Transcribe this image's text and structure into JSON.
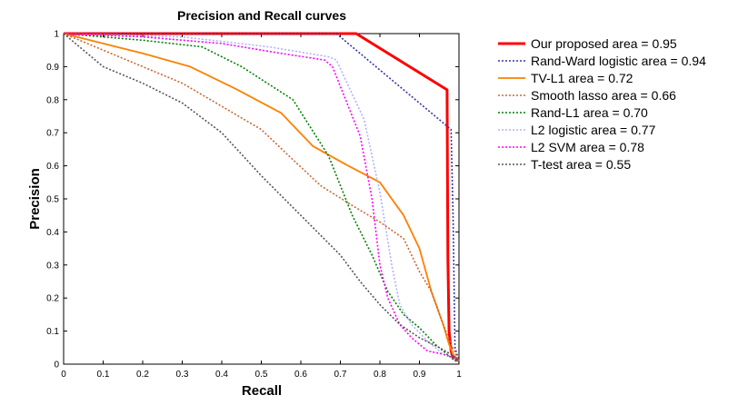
{
  "chart_data": {
    "type": "line",
    "title": "Precision and Recall curves",
    "xlabel": "Recall",
    "ylabel": "Precision",
    "xlim": [
      0,
      1
    ],
    "ylim": [
      0,
      1
    ],
    "xticks": [
      0,
      0.1,
      0.2,
      0.3,
      0.4,
      0.5,
      0.6,
      0.7,
      0.8,
      0.9,
      1
    ],
    "yticks": [
      0,
      0.1,
      0.2,
      0.3,
      0.4,
      0.5,
      0.6,
      0.7,
      0.8,
      0.9,
      1
    ],
    "xtick_labels": [
      "0",
      "0.1",
      "0.2",
      "0.3",
      "0.4",
      "0.5",
      "0.6",
      "0.7",
      "0.8",
      "0.9",
      "1"
    ],
    "ytick_labels": [
      "0",
      "0.1",
      "0.2",
      "0.3",
      "0.4",
      "0.5",
      "0.6",
      "0.7",
      "0.8",
      "0.9",
      "1"
    ],
    "grid": false,
    "legend_position": "outside-right",
    "series": [
      {
        "name": "Our proposed area = 0.95",
        "color": "#ff0000",
        "style": "solid",
        "x": [
          0,
          0.74,
          0.97,
          0.972,
          0.975,
          0.98,
          0.985,
          1.0
        ],
        "y": [
          1,
          1,
          0.83,
          0.32,
          0.1,
          0.04,
          0.02,
          0.01
        ]
      },
      {
        "name": "Rand-Ward logistic area = 0.94",
        "color": "#3333aa",
        "style": "dotted",
        "x": [
          0,
          0.69,
          0.98,
          0.985,
          0.99,
          1.0
        ],
        "y": [
          1,
          1,
          0.71,
          0.45,
          0.05,
          0.01
        ]
      },
      {
        "name": "TV-L1 area = 0.72",
        "color": "#ff8000",
        "style": "solid",
        "x": [
          0,
          0.1,
          0.2,
          0.32,
          0.44,
          0.55,
          0.63,
          0.72,
          0.8,
          0.86,
          0.9,
          0.93,
          0.96,
          0.975,
          0.985,
          1.0
        ],
        "y": [
          1,
          0.97,
          0.94,
          0.9,
          0.83,
          0.76,
          0.66,
          0.6,
          0.55,
          0.45,
          0.35,
          0.22,
          0.12,
          0.06,
          0.03,
          0.01
        ]
      },
      {
        "name": "Smooth lasso area = 0.66",
        "color": "#cc6633",
        "style": "dotted",
        "x": [
          0,
          0.1,
          0.2,
          0.3,
          0.4,
          0.5,
          0.57,
          0.65,
          0.73,
          0.8,
          0.86,
          0.9,
          0.93,
          0.96,
          0.98,
          1.0
        ],
        "y": [
          1,
          0.95,
          0.9,
          0.85,
          0.78,
          0.71,
          0.63,
          0.54,
          0.48,
          0.43,
          0.38,
          0.28,
          0.22,
          0.12,
          0.06,
          0.01
        ]
      },
      {
        "name": "Rand-L1 area = 0.70",
        "color": "#008000",
        "style": "dotted",
        "x": [
          0,
          0.2,
          0.35,
          0.45,
          0.58,
          0.67,
          0.73,
          0.78,
          0.82,
          0.86,
          0.9,
          0.94,
          0.97,
          0.99,
          1.0
        ],
        "y": [
          1,
          0.98,
          0.96,
          0.9,
          0.8,
          0.63,
          0.45,
          0.33,
          0.22,
          0.15,
          0.11,
          0.06,
          0.03,
          0.01,
          0.01
        ]
      },
      {
        "name": "L2 logistic area = 0.77",
        "color": "#b0b0ff",
        "style": "dotted",
        "x": [
          0,
          0.3,
          0.52,
          0.67,
          0.69,
          0.76,
          0.8,
          0.83,
          0.85,
          0.88,
          0.92,
          0.96,
          0.98,
          1.0
        ],
        "y": [
          1,
          0.99,
          0.96,
          0.93,
          0.92,
          0.74,
          0.52,
          0.3,
          0.18,
          0.12,
          0.07,
          0.03,
          0.02,
          0.01
        ]
      },
      {
        "name": "L2 SVM area = 0.78",
        "color": "#ff00ff",
        "style": "dotted",
        "x": [
          0,
          0.2,
          0.4,
          0.55,
          0.66,
          0.68,
          0.75,
          0.78,
          0.8,
          0.82,
          0.85,
          0.88,
          0.92,
          0.96,
          0.99,
          1.0
        ],
        "y": [
          1,
          0.99,
          0.97,
          0.94,
          0.92,
          0.9,
          0.69,
          0.5,
          0.3,
          0.2,
          0.12,
          0.08,
          0.04,
          0.03,
          0.02,
          0.01
        ]
      },
      {
        "name": "T-test area = 0.55",
        "color": "#555555",
        "style": "dotted",
        "x": [
          0,
          0.05,
          0.1,
          0.2,
          0.3,
          0.4,
          0.5,
          0.6,
          0.7,
          0.75,
          0.8,
          0.85,
          0.9,
          0.95,
          0.98,
          1.0
        ],
        "y": [
          1,
          0.95,
          0.9,
          0.85,
          0.79,
          0.7,
          0.57,
          0.45,
          0.33,
          0.25,
          0.18,
          0.12,
          0.08,
          0.05,
          0.03,
          0.01
        ]
      }
    ]
  }
}
